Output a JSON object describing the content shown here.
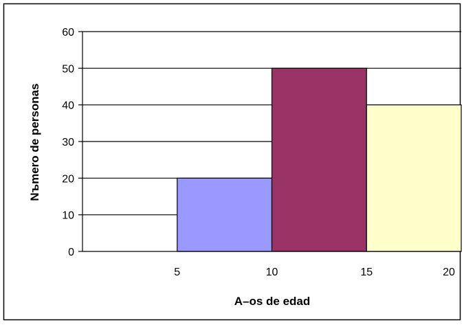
{
  "chart_data": {
    "type": "bar",
    "title": "",
    "xlabel": "A–os de edad",
    "ylabel": "Nъmero de personas",
    "xlim": [
      0,
      20
    ],
    "ylim": [
      0,
      60
    ],
    "y_ticks": [
      0,
      10,
      20,
      30,
      40,
      50,
      60
    ],
    "x_ticks": [
      5,
      10,
      15,
      20
    ],
    "grid": true,
    "legend": "none",
    "bars": [
      {
        "x_start": 5,
        "x_end": 10,
        "value": 20,
        "color": "#9999ff"
      },
      {
        "x_start": 10,
        "x_end": 15,
        "value": 50,
        "color": "#993366"
      },
      {
        "x_start": 15,
        "x_end": 20,
        "value": 40,
        "color": "#ffffcc"
      }
    ]
  }
}
